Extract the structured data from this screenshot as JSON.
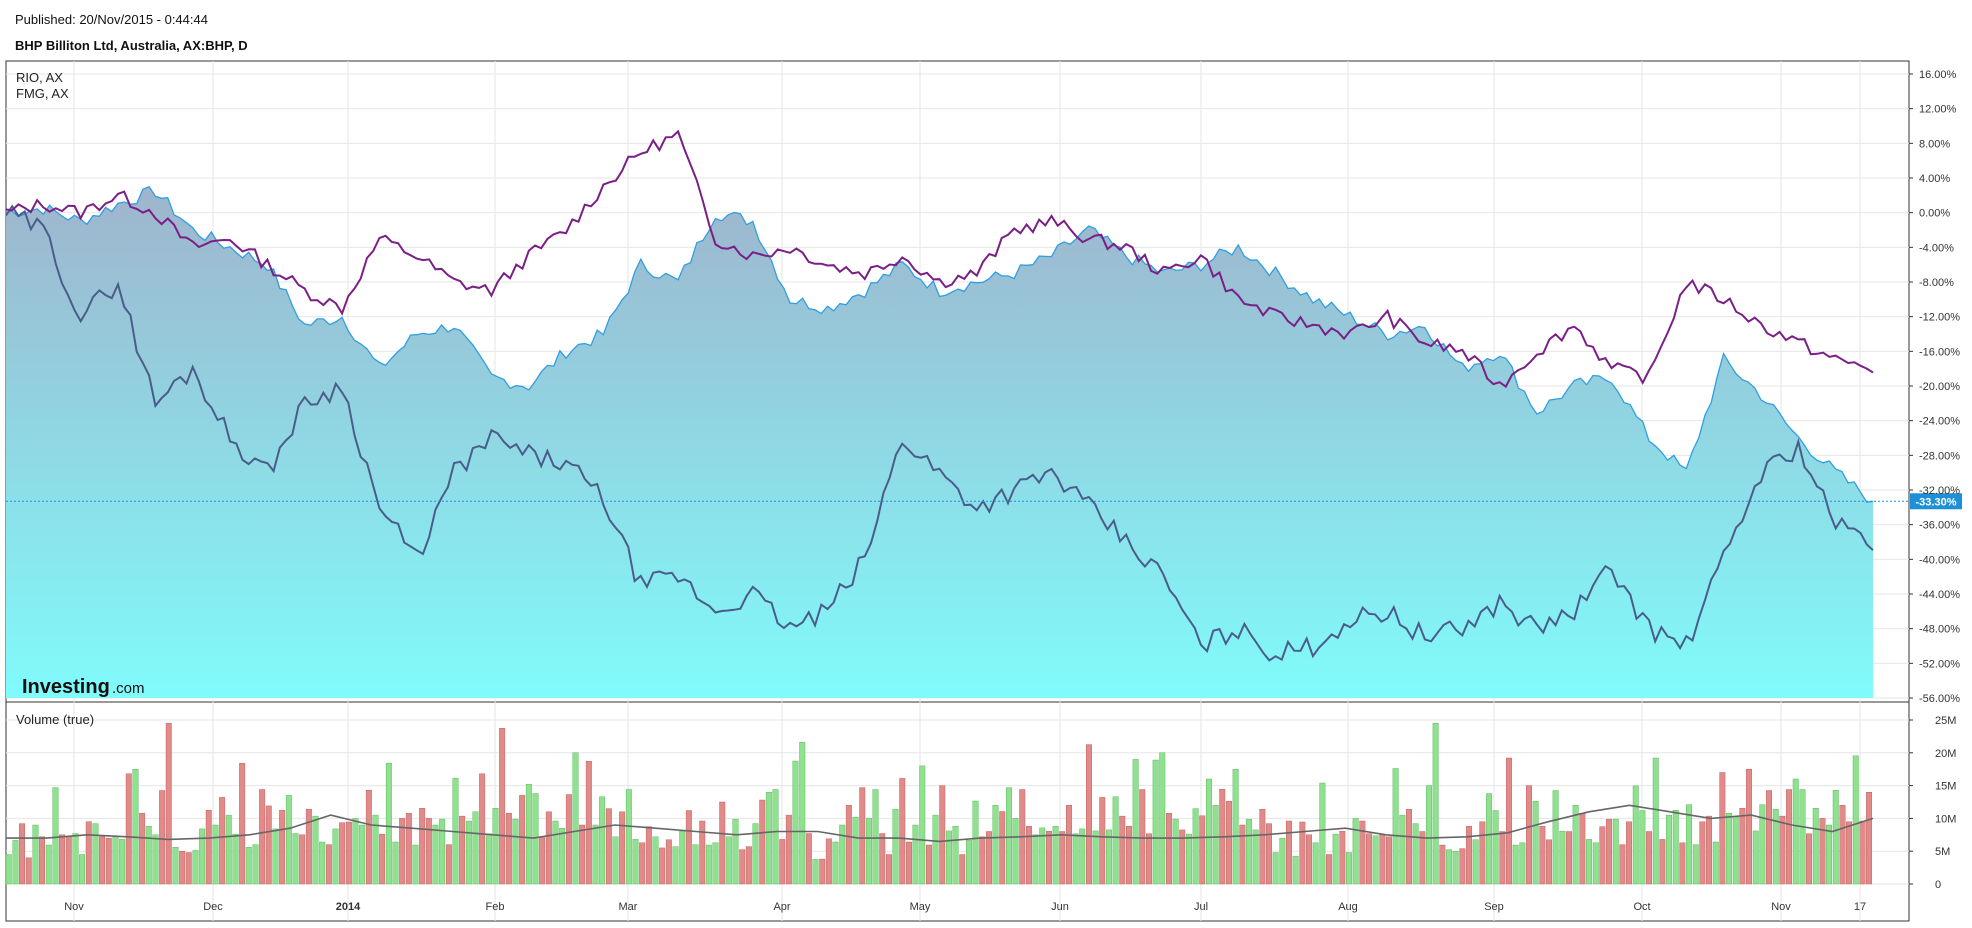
{
  "header": {
    "published": "Published: 20/Nov/2015 - 0:44:44",
    "title": "BHP Billiton Ltd, Australia, AX:BHP, D"
  },
  "legend": [
    "RIO, AX",
    "FMG, AX"
  ],
  "logo": {
    "main": "Investing",
    "suffix": ".com"
  },
  "colors": {
    "rio": "#7a1f86",
    "fmg": "#4a5d8a",
    "bhp_line": "#2f9fe0",
    "area_top": "#9fb4cc",
    "area_bottom": "#80fbfb",
    "vol_up": "#8fe08f",
    "vol_down": "#e08a8a",
    "current_badge": "#1e90d8"
  },
  "chart_data": [
    {
      "type": "line",
      "title": "BHP Billiton Ltd, Australia, AX:BHP, D",
      "y_unit": "percent",
      "ylim": [
        -56,
        16
      ],
      "y_ticks": [
        "16.00%",
        "12.00%",
        "8.00%",
        "4.00%",
        "0.00%",
        "-4.00%",
        "-8.00%",
        "-12.00%",
        "-16.00%",
        "-20.00%",
        "-24.00%",
        "-28.00%",
        "-32.00%",
        "-36.00%",
        "-40.00%",
        "-44.00%",
        "-48.00%",
        "-52.00%",
        "-56.00%"
      ],
      "x_ticks": [
        "Nov",
        "Dec",
        "2014",
        "Feb",
        "Mar",
        "Apr",
        "May",
        "Jun",
        "Jul",
        "Aug",
        "Sep",
        "Oct",
        "Nov",
        "17"
      ],
      "current_value_label": "-33.30%",
      "current_value": -33.3,
      "grid": true,
      "legend_placement": "top-left",
      "series": [
        {
          "name": "",
          "style": "area",
          "x": [
            0,
            0.02,
            0.04,
            0.06,
            0.08,
            0.1,
            0.12,
            0.14,
            0.16,
            0.18,
            0.2,
            0.22,
            0.24,
            0.26,
            0.28,
            0.3,
            0.32,
            0.34,
            0.36,
            0.38,
            0.4,
            0.42,
            0.44,
            0.46,
            0.48,
            0.5,
            0.52,
            0.54,
            0.56,
            0.58,
            0.6,
            0.62,
            0.64,
            0.66,
            0.68,
            0.7,
            0.72,
            0.74,
            0.76,
            0.78,
            0.8,
            0.82,
            0.84,
            0.86,
            0.88,
            0.9,
            0.92,
            0.94,
            0.96,
            0.98,
            1.0
          ],
          "values": [
            0,
            0.5,
            -1,
            1,
            2.5,
            -2,
            -4,
            -6,
            -13,
            -12,
            -18,
            -14,
            -13,
            -19,
            -20,
            -16,
            -14,
            -6,
            -8,
            0,
            -1,
            -10,
            -11,
            -9,
            -6,
            -9,
            -8,
            -7,
            -5,
            -2,
            -5,
            -7,
            -6,
            -4,
            -7,
            -10,
            -12,
            -14,
            -13,
            -18,
            -16,
            -23,
            -20,
            -19,
            -26,
            -30,
            -17,
            -21,
            -26,
            -30,
            -33.3
          ]
        },
        {
          "name": "RIO, AX",
          "x": [
            0,
            0.02,
            0.04,
            0.06,
            0.08,
            0.1,
            0.12,
            0.14,
            0.16,
            0.18,
            0.2,
            0.22,
            0.24,
            0.26,
            0.28,
            0.3,
            0.32,
            0.34,
            0.36,
            0.38,
            0.4,
            0.42,
            0.44,
            0.46,
            0.48,
            0.5,
            0.52,
            0.54,
            0.56,
            0.58,
            0.6,
            0.62,
            0.64,
            0.66,
            0.68,
            0.7,
            0.72,
            0.74,
            0.76,
            0.78,
            0.8,
            0.82,
            0.84,
            0.86,
            0.88,
            0.9,
            0.92,
            0.94,
            0.96,
            0.98,
            1.0
          ],
          "values": [
            0,
            1,
            0,
            2,
            0,
            -4,
            -3,
            -6,
            -9,
            -11,
            -3,
            -5,
            -8,
            -9,
            -5,
            -2,
            3,
            7,
            9,
            -3,
            -5,
            -4,
            -6,
            -7,
            -5,
            -8,
            -7,
            -2,
            -1,
            -3,
            -4,
            -7,
            -5,
            -10,
            -12,
            -13,
            -14,
            -12,
            -15,
            -16,
            -20,
            -16,
            -13,
            -18,
            -19,
            -8,
            -10,
            -13,
            -15,
            -17,
            -18
          ]
        },
        {
          "name": "FMG, AX",
          "x": [
            0,
            0.02,
            0.04,
            0.06,
            0.08,
            0.1,
            0.12,
            0.14,
            0.16,
            0.18,
            0.2,
            0.22,
            0.24,
            0.26,
            0.28,
            0.3,
            0.32,
            0.34,
            0.36,
            0.38,
            0.4,
            0.42,
            0.44,
            0.46,
            0.48,
            0.5,
            0.52,
            0.54,
            0.56,
            0.58,
            0.6,
            0.62,
            0.64,
            0.66,
            0.68,
            0.7,
            0.72,
            0.74,
            0.76,
            0.78,
            0.8,
            0.82,
            0.84,
            0.86,
            0.88,
            0.9,
            0.92,
            0.94,
            0.96,
            0.98,
            1.0
          ],
          "values": [
            0,
            -2,
            -12,
            -8,
            -22,
            -18,
            -26,
            -30,
            -22,
            -20,
            -34,
            -40,
            -30,
            -26,
            -28,
            -29,
            -33,
            -43,
            -42,
            -46,
            -44,
            -48,
            -46,
            -40,
            -26,
            -30,
            -34,
            -32,
            -30,
            -34,
            -38,
            -42,
            -50,
            -48,
            -51,
            -50,
            -47,
            -46,
            -49,
            -48,
            -45,
            -48,
            -46,
            -41,
            -48,
            -50,
            -40,
            -30,
            -27,
            -36,
            -38
          ]
        }
      ]
    },
    {
      "type": "bar",
      "title": "Volume (true)",
      "y_ticks": [
        "25M",
        "20M",
        "15M",
        "10M",
        "5M",
        "0"
      ],
      "ylim": [
        0,
        25
      ],
      "y_unit": "M",
      "x_ticks": [
        "Nov",
        "Dec",
        "2014",
        "Feb",
        "Mar",
        "Apr",
        "May",
        "Jun",
        "Jul",
        "Aug",
        "Sep",
        "Oct",
        "Nov",
        "17"
      ],
      "bar_count": 280,
      "values_sample": [
        6,
        7,
        8,
        5,
        9,
        6,
        7,
        14,
        6,
        8,
        7,
        6,
        10,
        8,
        9,
        7,
        6,
        8,
        16,
        14,
        12,
        8,
        10,
        15,
        24,
        7,
        5,
        4,
        6,
        8,
        9,
        10,
        12,
        14,
        8,
        16,
        7,
        6,
        12,
        14,
        8,
        9,
        15,
        7,
        10,
        12,
        9,
        8,
        6,
        7,
        11,
        9,
        8,
        10,
        13,
        14,
        8,
        16,
        8,
        10,
        9,
        7,
        11,
        8,
        10,
        9,
        8,
        17,
        9,
        12,
        11,
        14,
        9,
        11,
        19,
        12,
        9,
        18,
        16,
        12,
        9,
        11,
        8,
        10,
        13,
        16,
        10,
        17,
        12,
        14,
        10,
        9,
        11,
        12,
        8
      ],
      "up_down_pattern": [
        1,
        1,
        0,
        0,
        1,
        0,
        1,
        1,
        0,
        0,
        1,
        1,
        0,
        1,
        0,
        0,
        1,
        1,
        0,
        1,
        0,
        1,
        1,
        0,
        0,
        1,
        0,
        0,
        1,
        1,
        0,
        1,
        0,
        1,
        1,
        0
      ],
      "moving_average": [
        7,
        7,
        7.5,
        7.2,
        6.8,
        7,
        7.5,
        8.5,
        10.5,
        9,
        8.5,
        8,
        7.5,
        7,
        8,
        9,
        8.5,
        8,
        7.5,
        8,
        8,
        7,
        7,
        6.5,
        7,
        7.2,
        7.5,
        7.2,
        7,
        7,
        7.2,
        7.5,
        8,
        8.5,
        7.5,
        7,
        7.2,
        7.8,
        9.5,
        11,
        12,
        11,
        10,
        10.5,
        9,
        8,
        10
      ],
      "moving_average_name": ""
    }
  ]
}
